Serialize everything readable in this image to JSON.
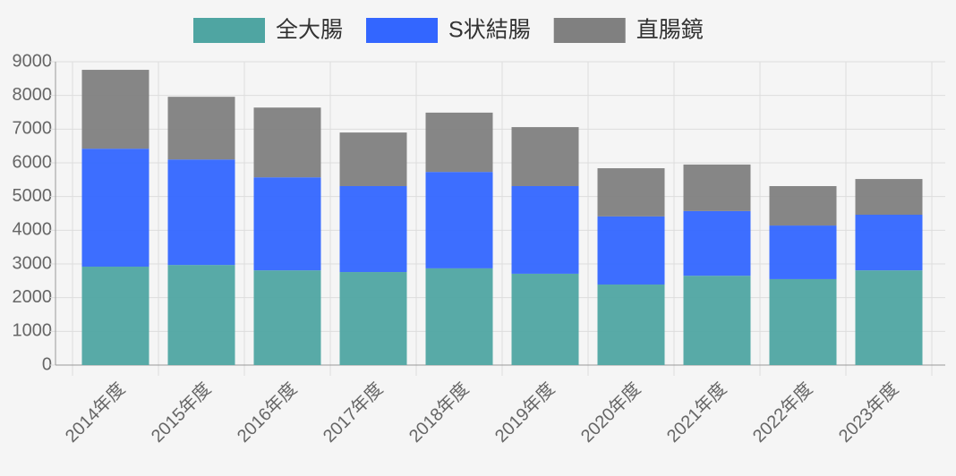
{
  "chart_data": {
    "type": "stacked_bar",
    "categories": [
      "2014年度",
      "2015年度",
      "2016年度",
      "2017年度",
      "2018年度",
      "2019年度",
      "2020年度",
      "2021年度",
      "2022年度",
      "2023年度"
    ],
    "series": [
      {
        "name": "全大腸",
        "color": "#4fa5a2",
        "values": [
          2920,
          2970,
          2810,
          2760,
          2870,
          2710,
          2390,
          2650,
          2550,
          2810
        ]
      },
      {
        "name": "S状結腸",
        "color": "#3366ff",
        "values": [
          3500,
          3130,
          2760,
          2550,
          2860,
          2600,
          2020,
          1920,
          1590,
          1650
        ]
      },
      {
        "name": "直腸鏡",
        "color": "#808080",
        "values": [
          2340,
          1860,
          2070,
          1590,
          1760,
          1750,
          1430,
          1380,
          1170,
          1060
        ]
      }
    ],
    "ylim": [
      0,
      9000
    ],
    "yticks": [
      0,
      1000,
      2000,
      3000,
      4000,
      5000,
      6000,
      7000,
      8000,
      9000
    ],
    "grid": true,
    "legend": "top"
  }
}
